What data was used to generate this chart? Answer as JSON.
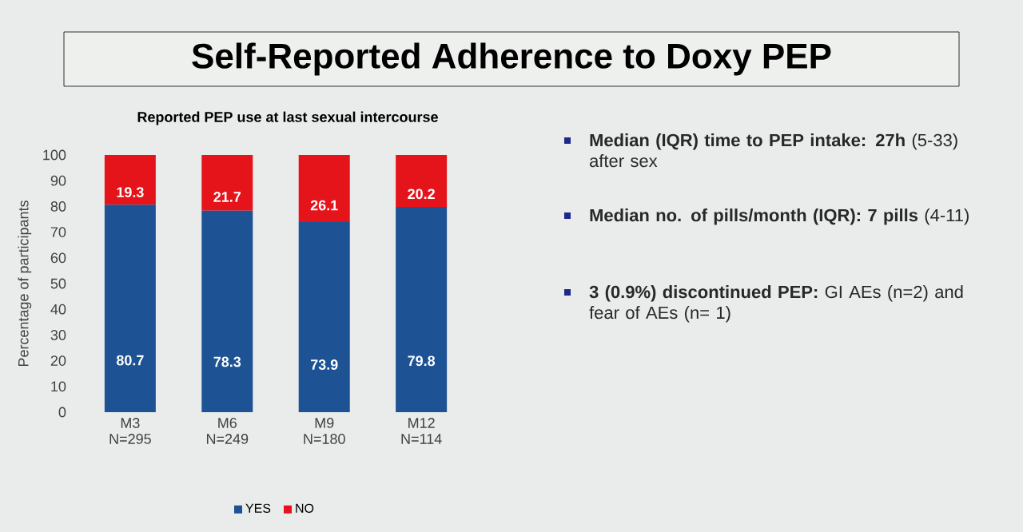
{
  "chart_data": {
    "type": "bar",
    "stacked": true,
    "title": "Self-Reported Adherence to Doxy PEP",
    "subtitle": "Reported PEP use at last sexual intercourse",
    "ylabel": "Percentage of participants",
    "categories": [
      "M3 N=295",
      "M6 N=249",
      "M9 N=180",
      "M12 N=114"
    ],
    "series": [
      {
        "name": "YES",
        "color": "#1d5294",
        "values": [
          80.7,
          78.3,
          73.9,
          79.8
        ]
      },
      {
        "name": "NO",
        "color": "#e5141b",
        "values": [
          19.3,
          21.7,
          26.1,
          20.2
        ]
      }
    ],
    "ylim": [
      0,
      100
    ],
    "yticks": [
      0,
      10,
      20,
      30,
      40,
      50,
      60,
      70,
      80,
      90,
      100
    ],
    "data_labels": true,
    "legend": "bottom",
    "grid": false,
    "annotations": [
      "**Median (IQR) time to PEP intake: 27h** (5-33) after sex",
      "**Median no. of pills/month (IQR): 7 pills** (4-11)",
      "**3 (0.9%) discontinued PEP:** GI AEs (n=2) and fear of AEs  (n= 1)"
    ]
  }
}
